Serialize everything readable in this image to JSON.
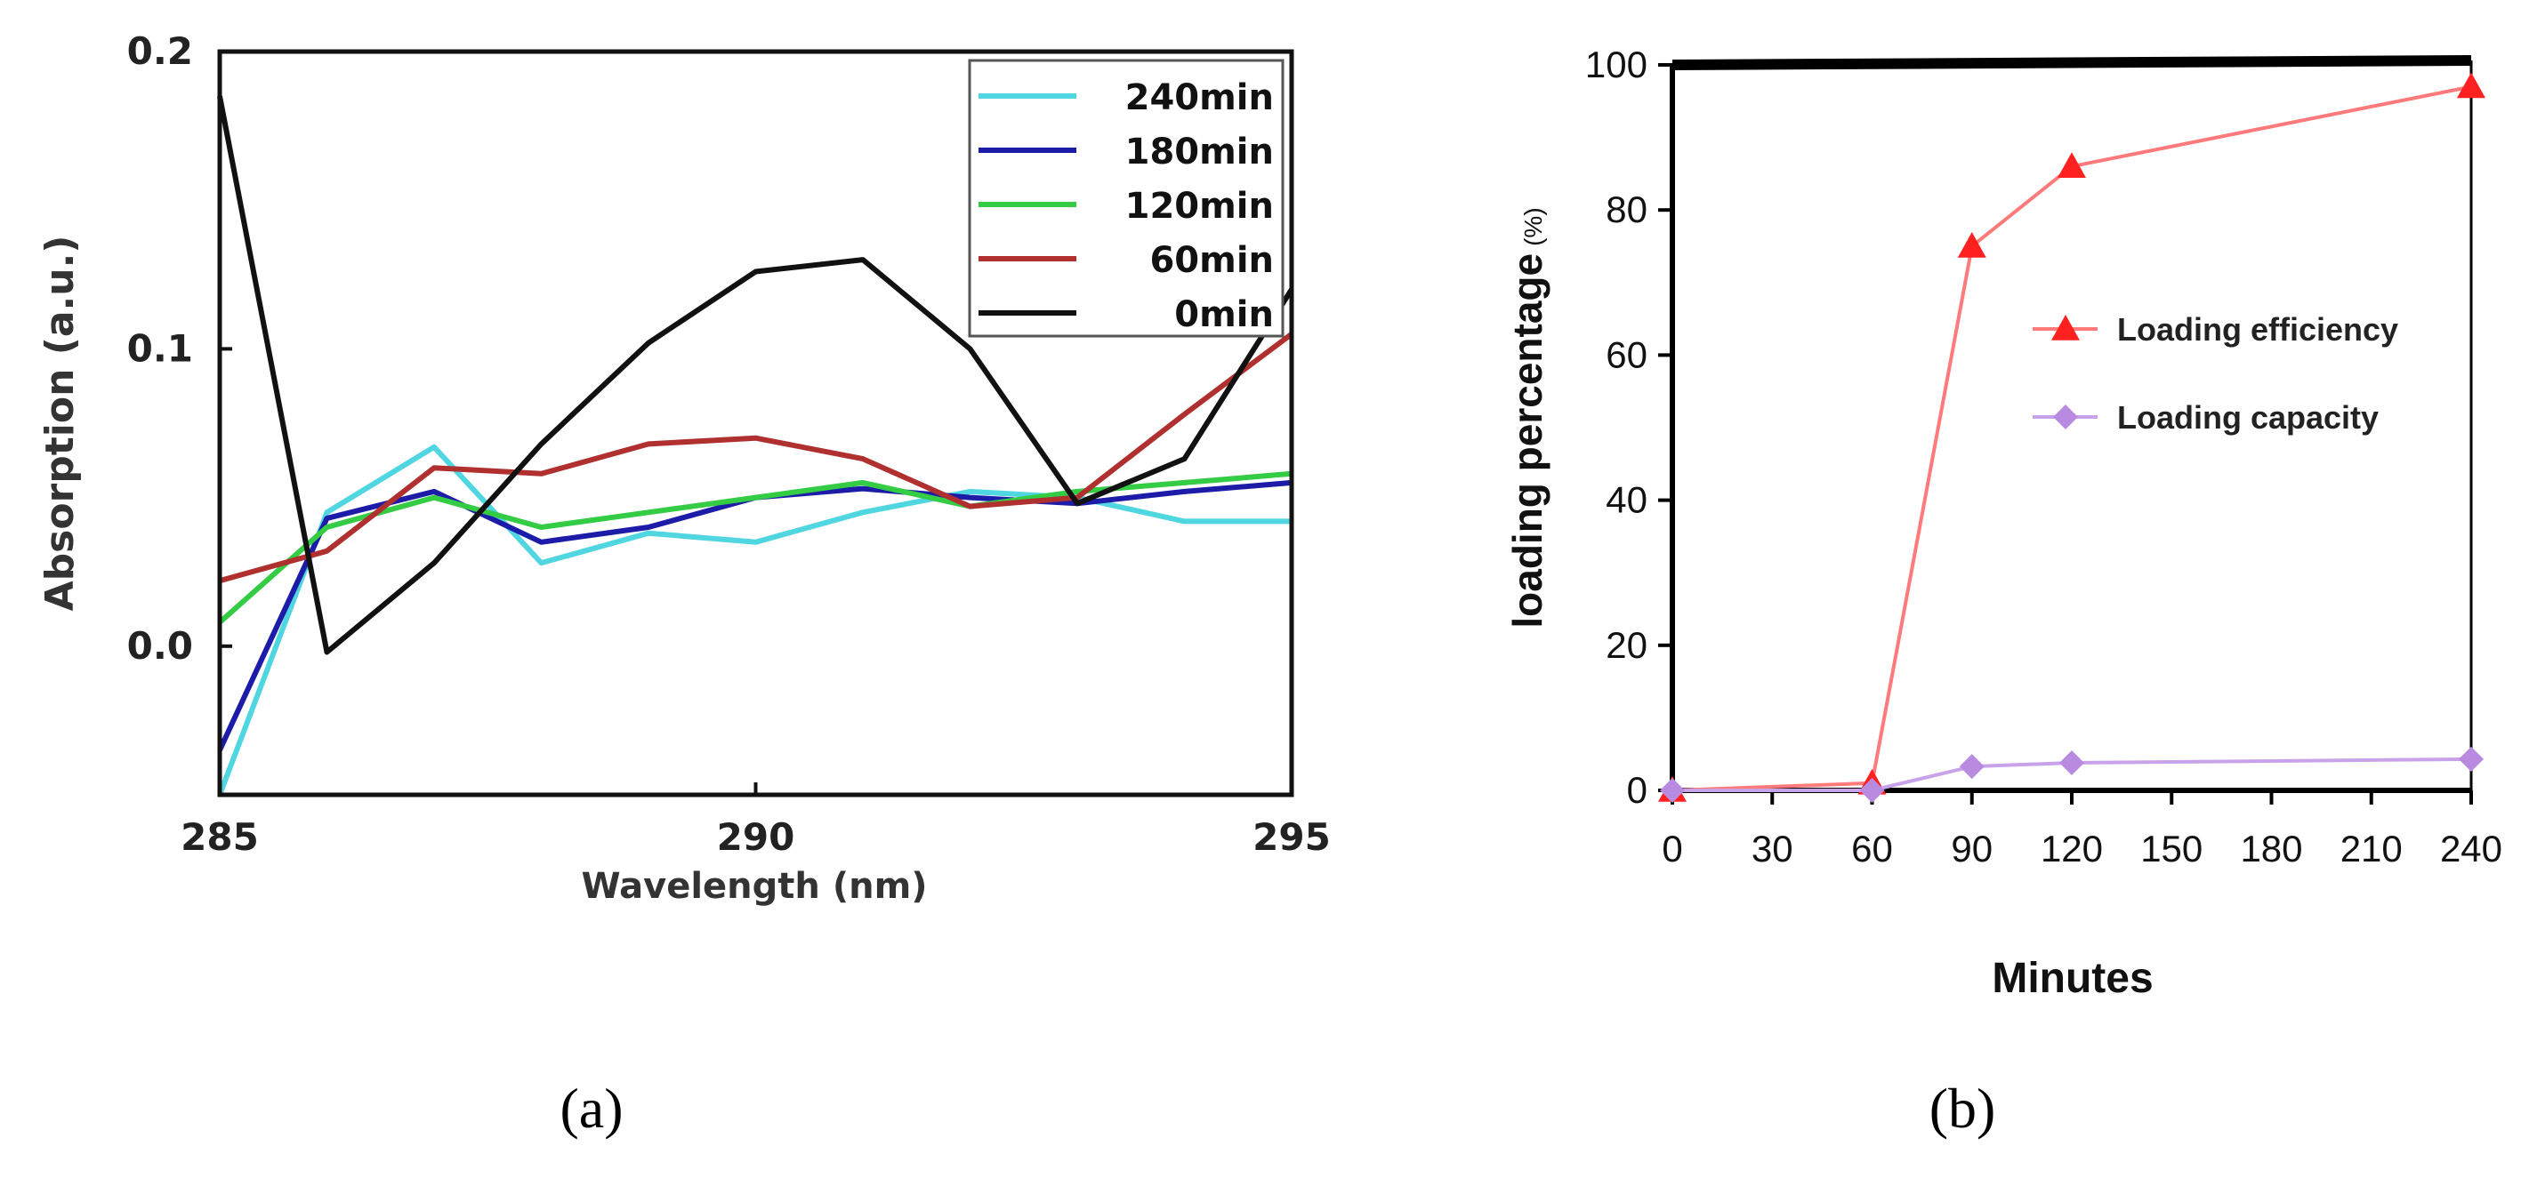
{
  "chart_data": [
    {
      "panel": "a",
      "type": "line",
      "xlabel": "Wavelength (nm)",
      "ylabel": "Absorption (a.u.)",
      "xlim": [
        285,
        295
      ],
      "ylim": [
        -0.05,
        0.2
      ],
      "xticks": [
        "285",
        "290",
        "295"
      ],
      "yticks": [
        "0.0",
        "0.1",
        "0.2"
      ],
      "series": [
        {
          "name": "240min",
          "color": "#4fd6e0",
          "x": [
            285,
            286,
            287,
            288,
            289,
            290,
            291,
            292,
            293,
            294,
            295
          ],
          "y": [
            -0.05,
            0.045,
            0.067,
            0.028,
            0.038,
            0.035,
            0.045,
            0.052,
            0.05,
            0.042,
            0.042
          ]
        },
        {
          "name": "180min",
          "color": "#1c1ca8",
          "x": [
            285,
            286,
            287,
            288,
            289,
            290,
            291,
            292,
            293,
            294,
            295
          ],
          "y": [
            -0.035,
            0.043,
            0.052,
            0.035,
            0.04,
            0.05,
            0.053,
            0.05,
            0.048,
            0.052,
            0.055
          ]
        },
        {
          "name": "120min",
          "color": "#33cc44",
          "x": [
            285,
            286,
            287,
            288,
            289,
            290,
            291,
            292,
            293,
            294,
            295
          ],
          "y": [
            0.008,
            0.04,
            0.05,
            0.04,
            0.045,
            0.05,
            0.055,
            0.047,
            0.052,
            0.055,
            0.058
          ]
        },
        {
          "name": "60min",
          "color": "#b03030",
          "x": [
            285,
            286,
            287,
            288,
            289,
            290,
            291,
            292,
            293,
            294,
            295
          ],
          "y": [
            0.022,
            0.032,
            0.06,
            0.058,
            0.068,
            0.07,
            0.063,
            0.047,
            0.05,
            0.078,
            0.105
          ]
        },
        {
          "name": "0min",
          "color": "#111111",
          "x": [
            285,
            286,
            287,
            288,
            289,
            290,
            291,
            292,
            293,
            294,
            295
          ],
          "y": [
            0.185,
            -0.002,
            0.028,
            0.068,
            0.102,
            0.126,
            0.13,
            0.1,
            0.048,
            0.063,
            0.12
          ]
        }
      ]
    },
    {
      "panel": "b",
      "type": "line",
      "xlabel": "Minutes",
      "ylabel": "loading percentage",
      "ylabel_unit": "(%)",
      "xlim": [
        0,
        240
      ],
      "ylim": [
        0,
        100
      ],
      "xticks": [
        "0",
        "30",
        "60",
        "90",
        "120",
        "150",
        "180",
        "210",
        "240"
      ],
      "yticks": [
        "0",
        "20",
        "40",
        "60",
        "80",
        "100"
      ],
      "series": [
        {
          "name": "Loading efficiency",
          "color": "#ff2020",
          "line_color": "#ff7a7a",
          "marker": "triangle",
          "x": [
            0,
            60,
            90,
            120,
            240
          ],
          "y": [
            0,
            1,
            75,
            86,
            97
          ]
        },
        {
          "name": "Loading capacity",
          "color": "#b98be0",
          "line_color": "#c9a3ea",
          "marker": "diamond",
          "x": [
            0,
            60,
            90,
            120,
            240
          ],
          "y": [
            0,
            0,
            3.3,
            3.8,
            4.3
          ]
        }
      ]
    }
  ],
  "panel_labels": {
    "a": "(a)",
    "b": "(b)"
  }
}
